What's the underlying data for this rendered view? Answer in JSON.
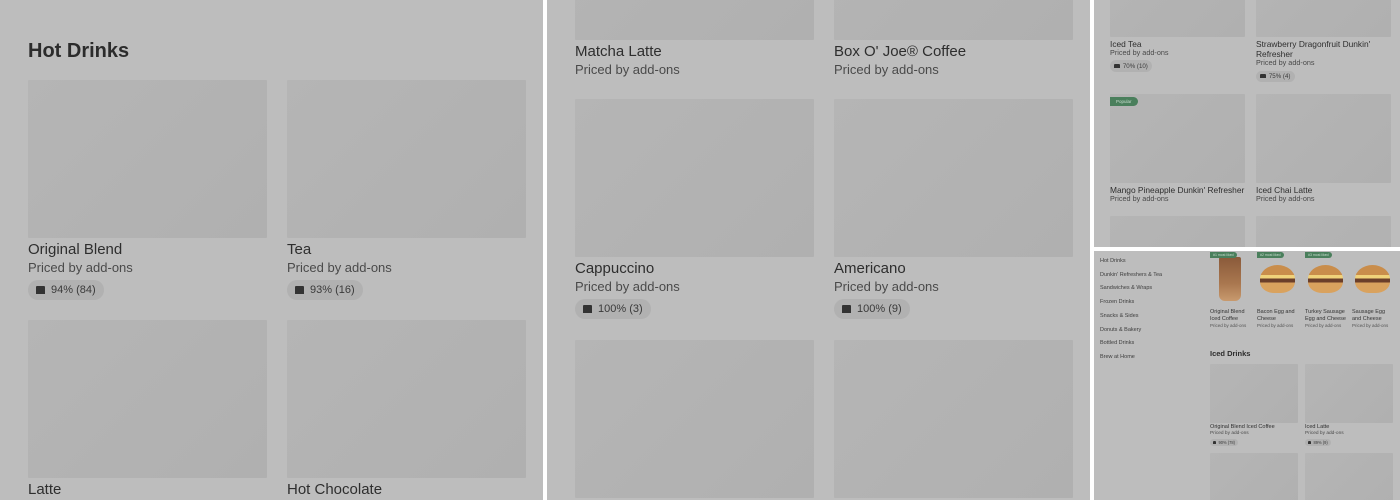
{
  "left_panel": {
    "section_title": "Hot Drinks",
    "items": [
      {
        "name": "Original Blend",
        "price": "Priced by add-ons",
        "rating": "94% (84)"
      },
      {
        "name": "Tea",
        "price": "Priced by add-ons",
        "rating": "93% (16)"
      },
      {
        "name": "Latte"
      },
      {
        "name": "Hot Chocolate"
      }
    ]
  },
  "middle_panel": {
    "items": [
      {
        "name": "Matcha Latte",
        "price": "Priced by add-ons"
      },
      {
        "name": "Box O' Joe® Coffee",
        "price": "Priced by add-ons"
      },
      {
        "name": "Cappuccino",
        "price": "Priced by add-ons",
        "rating": "100% (3)"
      },
      {
        "name": "Americano",
        "price": "Priced by add-ons",
        "rating": "100% (9)"
      },
      {},
      {}
    ]
  },
  "right_top_panel": {
    "items": [
      {
        "name": "Iced Tea",
        "price": "Priced by add-ons",
        "rating": "70% (10)"
      },
      {
        "name": "Strawberry Dragonfruit Dunkin' Refresher",
        "price": "Priced by add-ons",
        "rating": "75% (4)"
      },
      {
        "name": "Mango Pineapple Dunkin' Refresher",
        "price": "Priced by add-ons",
        "badge": "Popular"
      },
      {
        "name": "Iced Chai Latte",
        "price": "Priced by add-ons"
      },
      {},
      {}
    ]
  },
  "right_bottom_panel": {
    "sidebar": [
      "Hot Drinks",
      "Dunkin' Refreshers & Tea",
      "Sandwiches & Wraps",
      "Frozen Drinks",
      "Snacks & Sides",
      "Donuts & Bakery",
      "Bottled Drinks",
      "Brew at Home"
    ],
    "featured": [
      {
        "name": "Original Blend Iced Coffee",
        "price": "Priced by add-ons",
        "badge": "#1 most liked",
        "image_icon": "iced-coffee-cup"
      },
      {
        "name": "Bacon Egg and Cheese",
        "price": "Priced by add-ons",
        "badge": "#2 most liked",
        "image_icon": "sandwich"
      },
      {
        "name": "Turkey Sausage Egg and Cheese",
        "price": "Priced by add-ons",
        "badge": "#3 most liked",
        "image_icon": "sandwich"
      },
      {
        "name": "Sausage Egg and Cheese",
        "price": "Priced by add-ons",
        "image_icon": "sandwich"
      }
    ],
    "section_title": "Iced Drinks",
    "items": [
      {
        "name": "Original Blend Iced Coffee",
        "price": "Priced by add-ons",
        "rating": "90% (78)"
      },
      {
        "name": "Iced Latte",
        "price": "Priced by add-ons",
        "rating": "89% (9)"
      },
      {},
      {}
    ]
  },
  "colors": {
    "background": "#bdbdbd",
    "badge": "#4a7f5c",
    "text": "#2e2e2e"
  }
}
